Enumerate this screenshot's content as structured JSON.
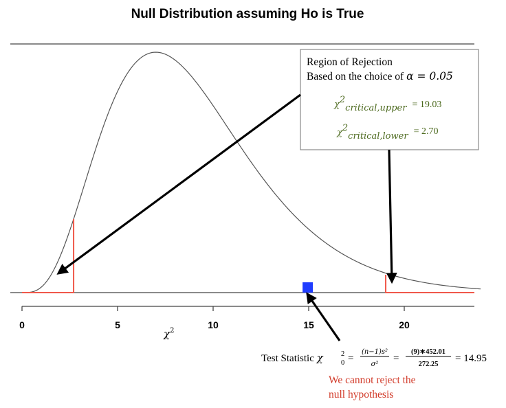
{
  "chart_data": {
    "type": "line",
    "title": "Null Distribution assuming Ho is True",
    "xlabel": "χ²",
    "distribution": "chi-square",
    "xlim": [
      0,
      24
    ],
    "x_ticks": [
      0,
      5,
      10,
      15,
      20
    ],
    "x_tick_labels": [
      "0",
      "5",
      "10",
      "15",
      "20"
    ],
    "critical_lower": 2.7,
    "critical_upper": 19.03,
    "test_statistic": 14.95
  },
  "annotation_box": {
    "line1": "Region of Rejection",
    "line2_prefix": "Based on the choice of ",
    "line2_alpha": "α = 0.05",
    "upper_symbol": "χ",
    "upper_sup": "2",
    "upper_sub": "critical,upper",
    "upper_value": "= 19.03",
    "lower_symbol": "χ",
    "lower_sup": "2",
    "lower_sub": "critical,lower",
    "lower_value": "= 2.70"
  },
  "test_statistic_text": {
    "label": "Test Statistic ",
    "symbol": "χ",
    "sup": "2",
    "sub": "0",
    "eq1": "=",
    "frac1_num": "(n−1)s²",
    "frac1_den": "σ²",
    "eq2": "=",
    "frac2_num": "(9)∗452.01",
    "frac2_den": "272.25",
    "result": "= 14.95"
  },
  "conclusion": {
    "line1": "We cannot reject the",
    "line2": "null hypothesis"
  },
  "colors": {
    "curve": "#555555",
    "rejection": "#f0584a",
    "marker": "#1f3cff",
    "crit_text": "#4d6a1f",
    "conclusion": "#d23b2a",
    "arrow": "#000000",
    "box_border": "#8a8a8a"
  }
}
